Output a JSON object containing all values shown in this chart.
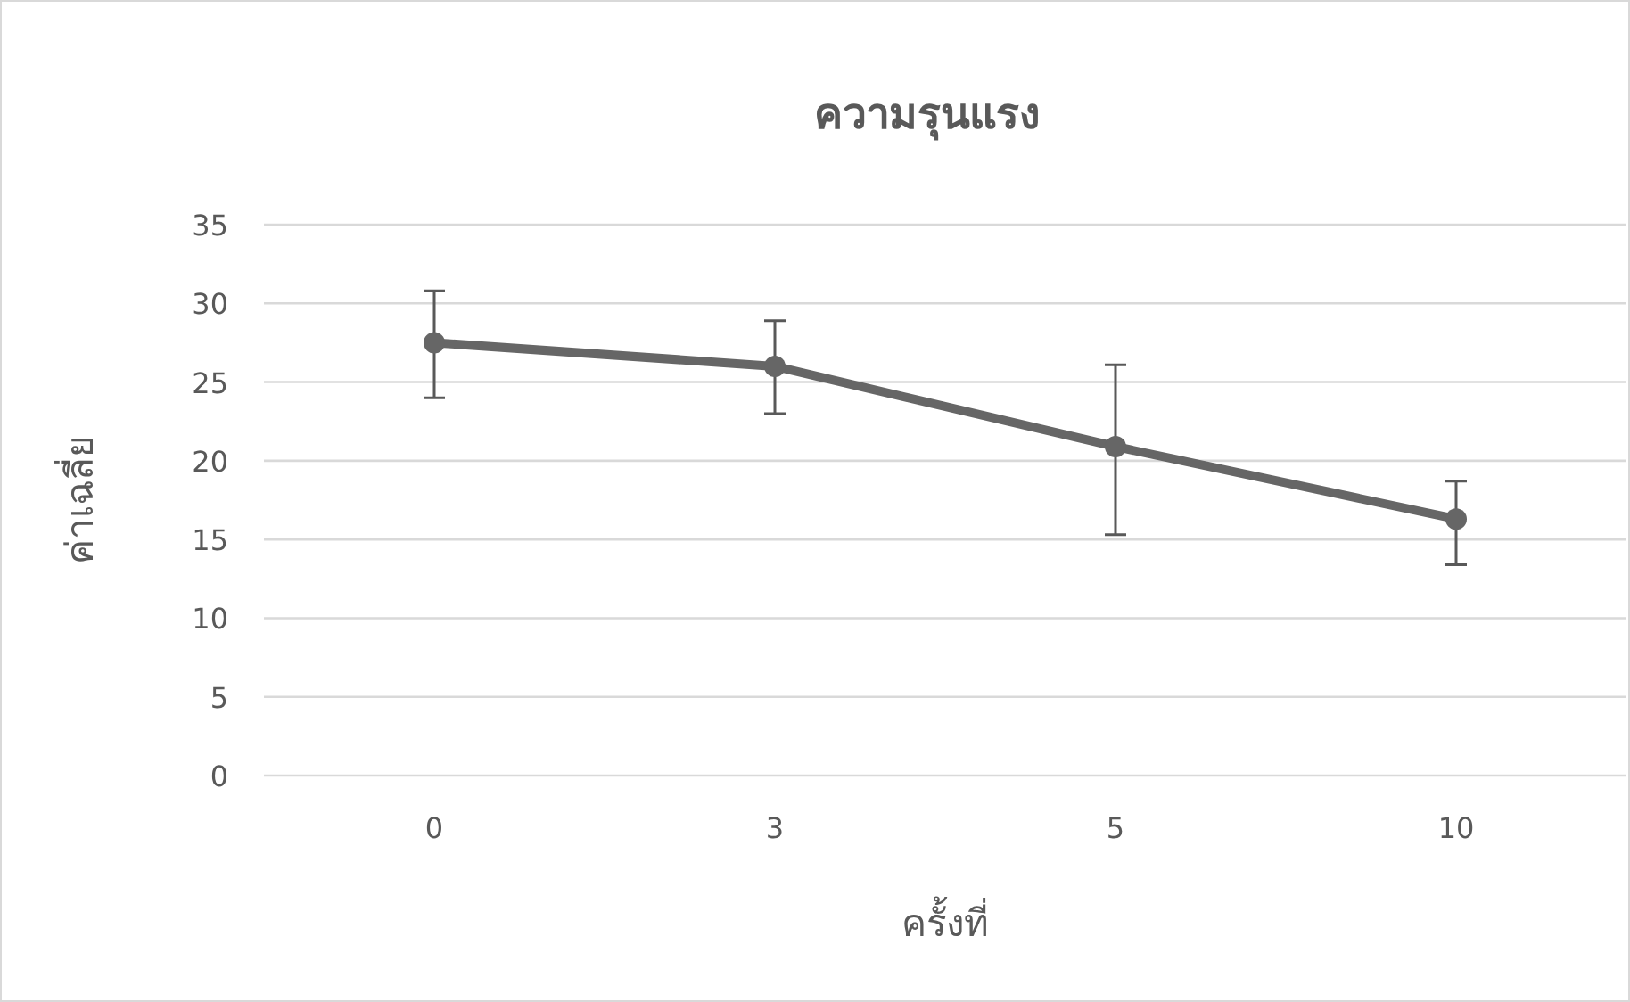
{
  "chart_data": {
    "type": "line",
    "title": "ความรุนแรง",
    "xlabel": "ครั้งที่",
    "ylabel": "ค่าเฉลี่ย",
    "categories": [
      "0",
      "3",
      "5",
      "10"
    ],
    "series": [
      {
        "color": "#666666",
        "values": [
          27.5,
          26.0,
          20.9,
          16.3
        ],
        "errors": [
          [
            24.0,
            30.8
          ],
          [
            23.0,
            28.9
          ],
          [
            15.3,
            26.1
          ],
          [
            13.4,
            18.7
          ]
        ]
      }
    ],
    "ylim": [
      0,
      35
    ],
    "yticks": [
      0,
      5,
      10,
      15,
      20,
      25,
      30,
      35
    ],
    "grid": "y",
    "marker": "circle",
    "line_style": "solid"
  }
}
